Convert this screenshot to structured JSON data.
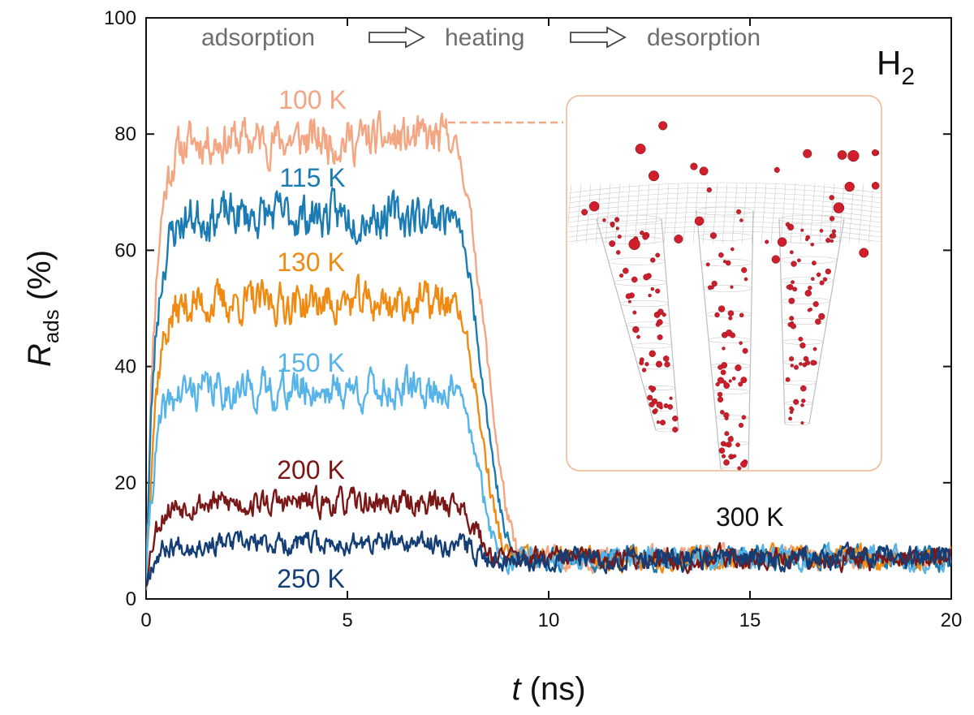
{
  "chart_data": {
    "type": "line",
    "xlabel_italic": "t",
    "xlabel_rest": " (ns)",
    "ylabel_main": "R",
    "ylabel_sub": "ads",
    "ylabel_rest": " (%)",
    "xlim": [
      0,
      20
    ],
    "ylim": [
      0,
      100
    ],
    "xticks": [
      "0",
      "5",
      "10",
      "15",
      "20"
    ],
    "yticks": [
      "0",
      "20",
      "40",
      "60",
      "80",
      "100"
    ],
    "stages": [
      "adsorption",
      "heating",
      "desorption"
    ],
    "gas_main": "H",
    "gas_sub": "2",
    "final_label": "300 K",
    "equilibrium_value": 7,
    "inset": "snapshot: H2 molecules (red) adsorbed in carbon nanocone array at 100 K",
    "series": [
      {
        "name": "100 K",
        "color": "#f4a582",
        "plateau": 79,
        "amp": 3.0,
        "seed": 11
      },
      {
        "name": "115 K",
        "color": "#1b7bb3",
        "plateau": 66,
        "amp": 3.0,
        "seed": 23
      },
      {
        "name": "130 K",
        "color": "#ef8a12",
        "plateau": 51,
        "amp": 2.8,
        "seed": 37
      },
      {
        "name": "150 K",
        "color": "#56b4e9",
        "plateau": 36,
        "amp": 2.6,
        "seed": 41
      },
      {
        "name": "200 K",
        "color": "#7a1717",
        "plateau": 16.5,
        "amp": 1.8,
        "seed": 53
      },
      {
        "name": "250 K",
        "color": "#143f76",
        "plateau": 9.5,
        "amp": 1.5,
        "seed": 67
      }
    ]
  }
}
